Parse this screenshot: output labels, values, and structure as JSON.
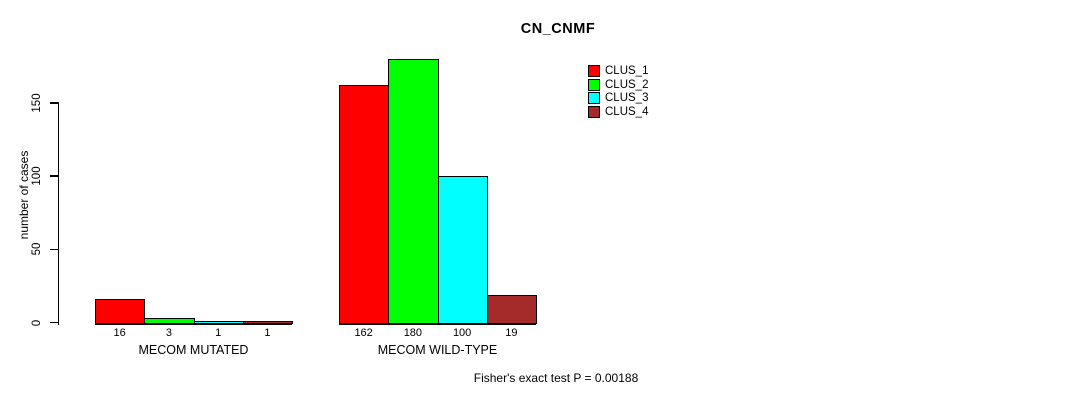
{
  "chart_data": {
    "type": "bar",
    "title": "CN_CNMF",
    "ylabel": "number of cases",
    "xlabel": "",
    "ylim": [
      0,
      150
    ],
    "yticks": [
      0,
      50,
      100,
      150
    ],
    "grid": false,
    "legend_position": "top-right",
    "categories": [
      "MECOM MUTATED",
      "MECOM WILD-TYPE"
    ],
    "series": [
      {
        "name": "CLUS_1",
        "color": "#ff0000",
        "values": [
          16,
          162
        ]
      },
      {
        "name": "CLUS_2",
        "color": "#00ff00",
        "values": [
          3,
          180
        ]
      },
      {
        "name": "CLUS_3",
        "color": "#00ffff",
        "values": [
          1,
          100
        ]
      },
      {
        "name": "CLUS_4",
        "color": "#a52a2a",
        "values": [
          1,
          19
        ]
      }
    ],
    "bar_value_labels_shown": true,
    "annotation": "Fisher's exact test P = 0.00188"
  }
}
